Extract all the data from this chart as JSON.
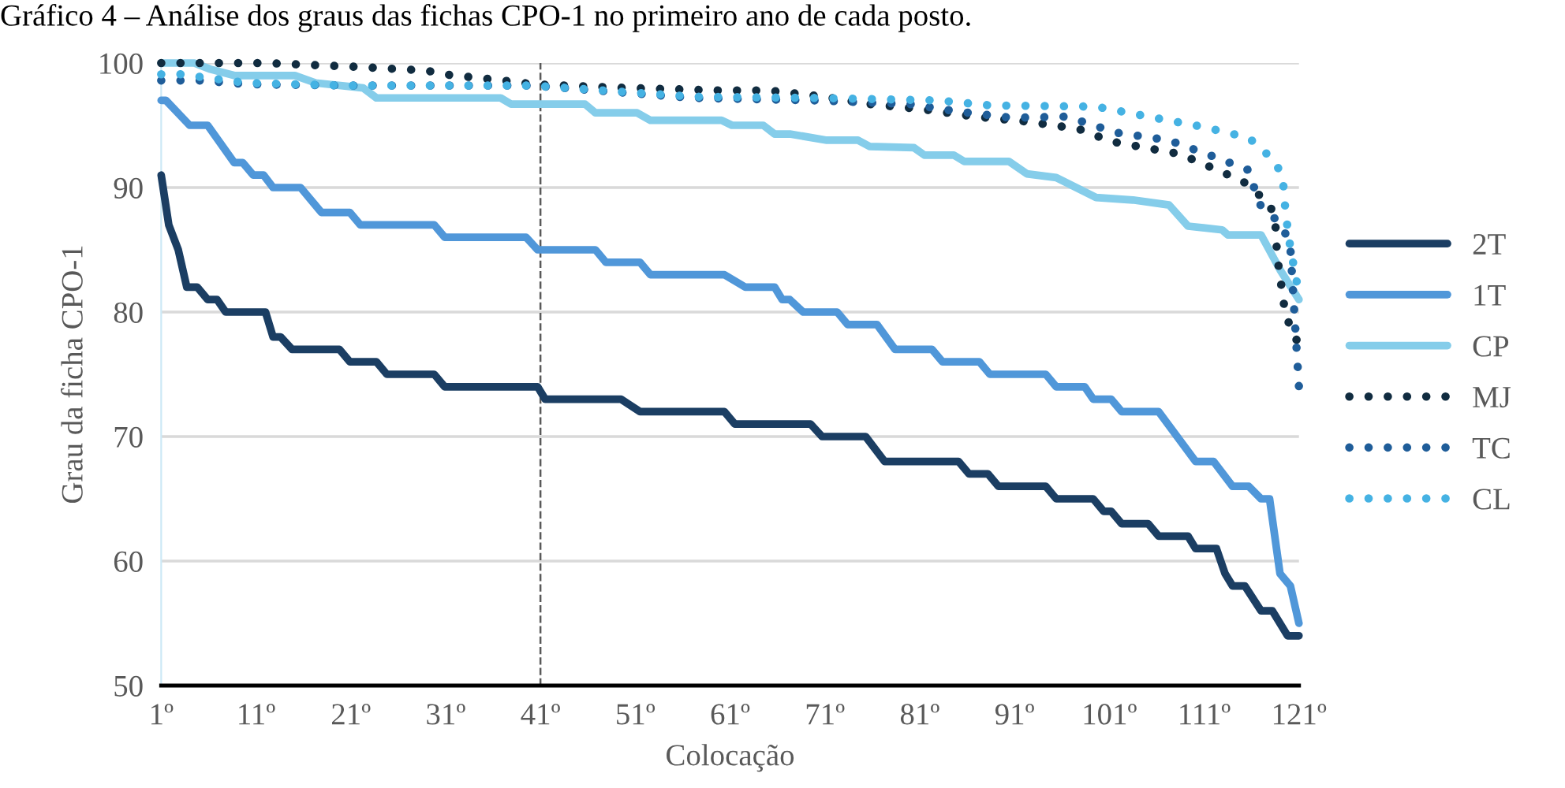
{
  "chart_data": {
    "type": "line",
    "title": "Gráfico 4 – Análise dos graus das fichas CPO-1 no primeiro ano de cada posto.",
    "xlabel": "Colocação",
    "ylabel": "Grau da ficha CPO-1",
    "xlim": [
      1,
      121
    ],
    "xticks": [
      {
        "value": 1,
        "label": "1º"
      },
      {
        "value": 11,
        "label": "11º"
      },
      {
        "value": 21,
        "label": "21º"
      },
      {
        "value": 31,
        "label": "31º"
      },
      {
        "value": 41,
        "label": "41º"
      },
      {
        "value": 51,
        "label": "51º"
      },
      {
        "value": 61,
        "label": "61º"
      },
      {
        "value": 71,
        "label": "71º"
      },
      {
        "value": 81,
        "label": "81º"
      },
      {
        "value": 91,
        "label": "91º"
      },
      {
        "value": 101,
        "label": "101º"
      },
      {
        "value": 111,
        "label": "111º"
      },
      {
        "value": 121,
        "label": "121º"
      }
    ],
    "ylim": [
      50,
      100
    ],
    "yticks": [
      50,
      60,
      70,
      80,
      90,
      100
    ],
    "grid": "y",
    "legend": "right",
    "ref_lines": [
      {
        "axis": "x",
        "value": 41,
        "color": "#595959",
        "line_style": "dashed"
      }
    ],
    "series": [
      {
        "name": "2T",
        "color": "#1b3e63",
        "line_style": "solid",
        "x": [
          1,
          1.8,
          2.8,
          3.7,
          4.8,
          5.9,
          6.9,
          7.8,
          12,
          12.8,
          13.6,
          14.8,
          19.8,
          20.9,
          23.7,
          24.8,
          29.8,
          30.9,
          40.7,
          41.5,
          49.5,
          51.5,
          60.4,
          61.5,
          69.5,
          70.7,
          75.3,
          77.3,
          85.1,
          86.2,
          88.2,
          89.3,
          94.3,
          95.4,
          99.3,
          100.4,
          101.2,
          102.3,
          105.1,
          106.2,
          109.3,
          110.1,
          112.3,
          113.2,
          114,
          115.3,
          117,
          118.2,
          119.8,
          121
        ],
        "values": [
          91,
          87,
          85,
          82,
          82,
          81,
          81,
          80,
          80,
          78,
          78,
          77,
          77,
          76,
          76,
          75,
          75,
          74,
          74,
          73,
          73,
          72,
          72,
          71,
          71,
          70,
          70,
          68,
          68,
          67,
          67,
          66,
          66,
          65,
          65,
          64,
          64,
          63,
          63,
          62,
          62,
          61,
          61,
          59,
          58,
          58,
          56,
          56,
          54,
          54
        ]
      },
      {
        "name": "1T",
        "color": "#5097d9",
        "line_style": "solid",
        "x": [
          1,
          1.5,
          4,
          5.9,
          8.7,
          9.6,
          10.7,
          11.8,
          12.8,
          15.7,
          17.9,
          20.9,
          22,
          29.8,
          30.9,
          39.5,
          40.7,
          46.8,
          47.9,
          51.5,
          52.6,
          60.4,
          62.6,
          65.7,
          66.5,
          67.3,
          68.7,
          72.3,
          73.4,
          76.5,
          78.4,
          82.3,
          83.4,
          87.3,
          88.4,
          94.3,
          95.4,
          98.4,
          99.3,
          101.2,
          102.3,
          106.2,
          110.1,
          112,
          114,
          115.7,
          117,
          117.9,
          119,
          120.1,
          121
        ],
        "values": [
          97,
          97,
          95,
          95,
          92,
          92,
          91,
          91,
          90,
          90,
          88,
          88,
          87,
          87,
          86,
          86,
          85,
          85,
          84,
          84,
          83,
          83,
          82,
          82,
          81,
          81,
          80,
          80,
          79,
          79,
          77,
          77,
          76,
          76,
          75,
          75,
          74,
          74,
          73,
          73,
          72,
          72,
          68,
          68,
          66,
          66,
          65,
          65,
          59,
          58,
          55
        ]
      },
      {
        "name": "CP",
        "color": "#85cdea",
        "line_style": "solid",
        "x": [
          1,
          4.5,
          6.2,
          8.7,
          15.1,
          17.3,
          22.3,
          23.7,
          36.8,
          37.9,
          45.7,
          46.8,
          51.2,
          52.6,
          60.1,
          61.2,
          64.5,
          65.7,
          67.3,
          71.2,
          74.5,
          75.7,
          80.4,
          81.5,
          84.6,
          85.7,
          90.4,
          92.3,
          95.4,
          99.6,
          103.5,
          107.3,
          109.3,
          112.9,
          113.5,
          117,
          119,
          121
        ],
        "values": [
          100,
          100,
          99.5,
          99,
          99,
          98.4,
          98,
          97.2,
          97.2,
          96.7,
          96.7,
          96,
          96,
          95.4,
          95.4,
          95,
          95,
          94.3,
          94.3,
          93.8,
          93.8,
          93.3,
          93.2,
          92.6,
          92.6,
          92.1,
          92.1,
          91.1,
          90.8,
          89.2,
          89,
          88.6,
          86.9,
          86.6,
          86.2,
          86.2,
          83.4,
          81
        ]
      },
      {
        "name": "MJ",
        "color": "#112c40",
        "line_style": "dotted",
        "x": [
          1,
          12,
          21.5,
          29,
          30.7,
          34.5,
          38.2,
          40.2,
          50,
          60,
          65,
          70.8,
          75.7,
          81.2,
          86.8,
          92.3,
          97.8,
          101.2,
          104.8,
          108.4,
          111.8,
          115.1,
          117.9,
          118.5,
          118.7,
          119.5,
          120.1,
          121
        ],
        "values": [
          100,
          100,
          99.7,
          99.4,
          99.1,
          98.8,
          98.5,
          98.3,
          98,
          97.8,
          97.8,
          97.3,
          96.7,
          96.3,
          95.7,
          95.3,
          94.7,
          93.7,
          93.2,
          92.7,
          91.6,
          90.5,
          88.7,
          87.3,
          84.5,
          80.2,
          78.7,
          77.4
        ]
      },
      {
        "name": "TC",
        "color": "#1f5d99",
        "line_style": "dotted",
        "x": [
          1,
          5,
          10,
          20,
          40,
          57,
          70,
          80,
          85.1,
          90.7,
          96.5,
          101.8,
          107.3,
          112.3,
          115.7,
          116.8,
          119.3,
          120.1,
          121
        ],
        "values": [
          98.6,
          98.6,
          98.3,
          98.2,
          98.2,
          97.2,
          97,
          96.7,
          96.1,
          95.6,
          95.7,
          94.4,
          93.8,
          92.4,
          91.4,
          88.7,
          86.9,
          85.1,
          74
        ]
      },
      {
        "name": "CL",
        "color": "#45b2e3",
        "line_style": "dotted",
        "x": [
          1,
          3,
          10,
          20,
          40,
          57,
          70,
          82.9,
          88.4,
          99.6,
          105.1,
          110.7,
          115.7,
          118.5,
          119.3,
          119.6,
          120.1,
          121
        ],
        "values": [
          99.1,
          99.1,
          98.4,
          98.2,
          98.2,
          97.3,
          97.2,
          97,
          96.6,
          96.5,
          95.7,
          94.9,
          94,
          92.1,
          90.7,
          87.9,
          85.1,
          81.5
        ]
      }
    ]
  }
}
